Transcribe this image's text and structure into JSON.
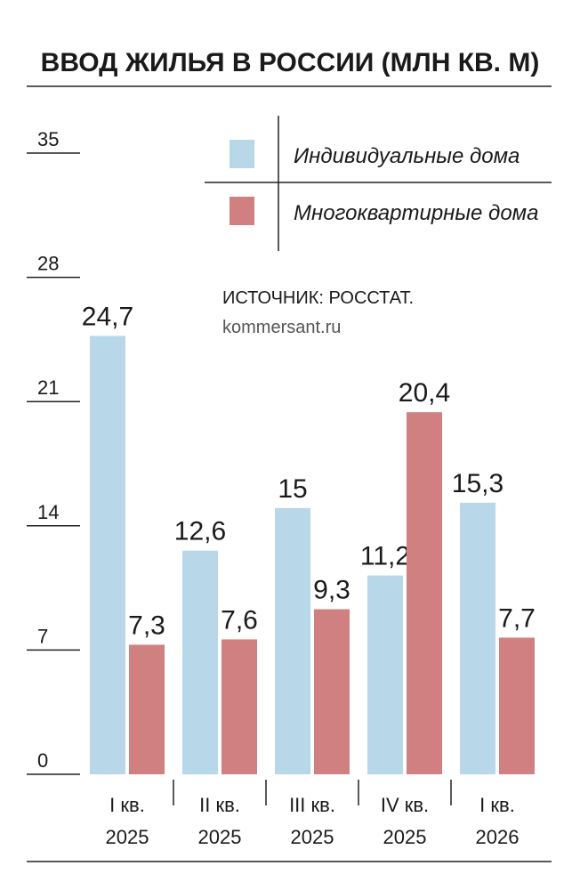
{
  "chart_data": {
    "type": "bar",
    "title": "ВВОД ЖИЛЬЯ В РОССИИ (МЛН КВ. М)",
    "source": "ИСТОЧНИК: РОССТАТ.",
    "site": "kommersant.ru",
    "categories": [
      "I кв. 2025",
      "II кв. 2025",
      "III кв. 2025",
      "IV кв. 2025",
      "I кв. 2026"
    ],
    "series": [
      {
        "name": "Индивидуальные дома",
        "color": "#b8d8ea",
        "values": [
          24.7,
          12.6,
          15,
          11.2,
          15.3
        ],
        "value_labels": [
          "24,7",
          "12,6",
          "15",
          "11,2",
          "15,3"
        ]
      },
      {
        "name": "Многоквартирные дома",
        "color": "#d08080",
        "values": [
          7.3,
          7.6,
          9.3,
          20.4,
          7.7
        ],
        "value_labels": [
          "7,3",
          "7,6",
          "9,3",
          "20,4",
          "7,7"
        ]
      }
    ],
    "ylim": [
      0,
      35
    ],
    "yticks": [
      0,
      7,
      14,
      21,
      28,
      35
    ]
  }
}
